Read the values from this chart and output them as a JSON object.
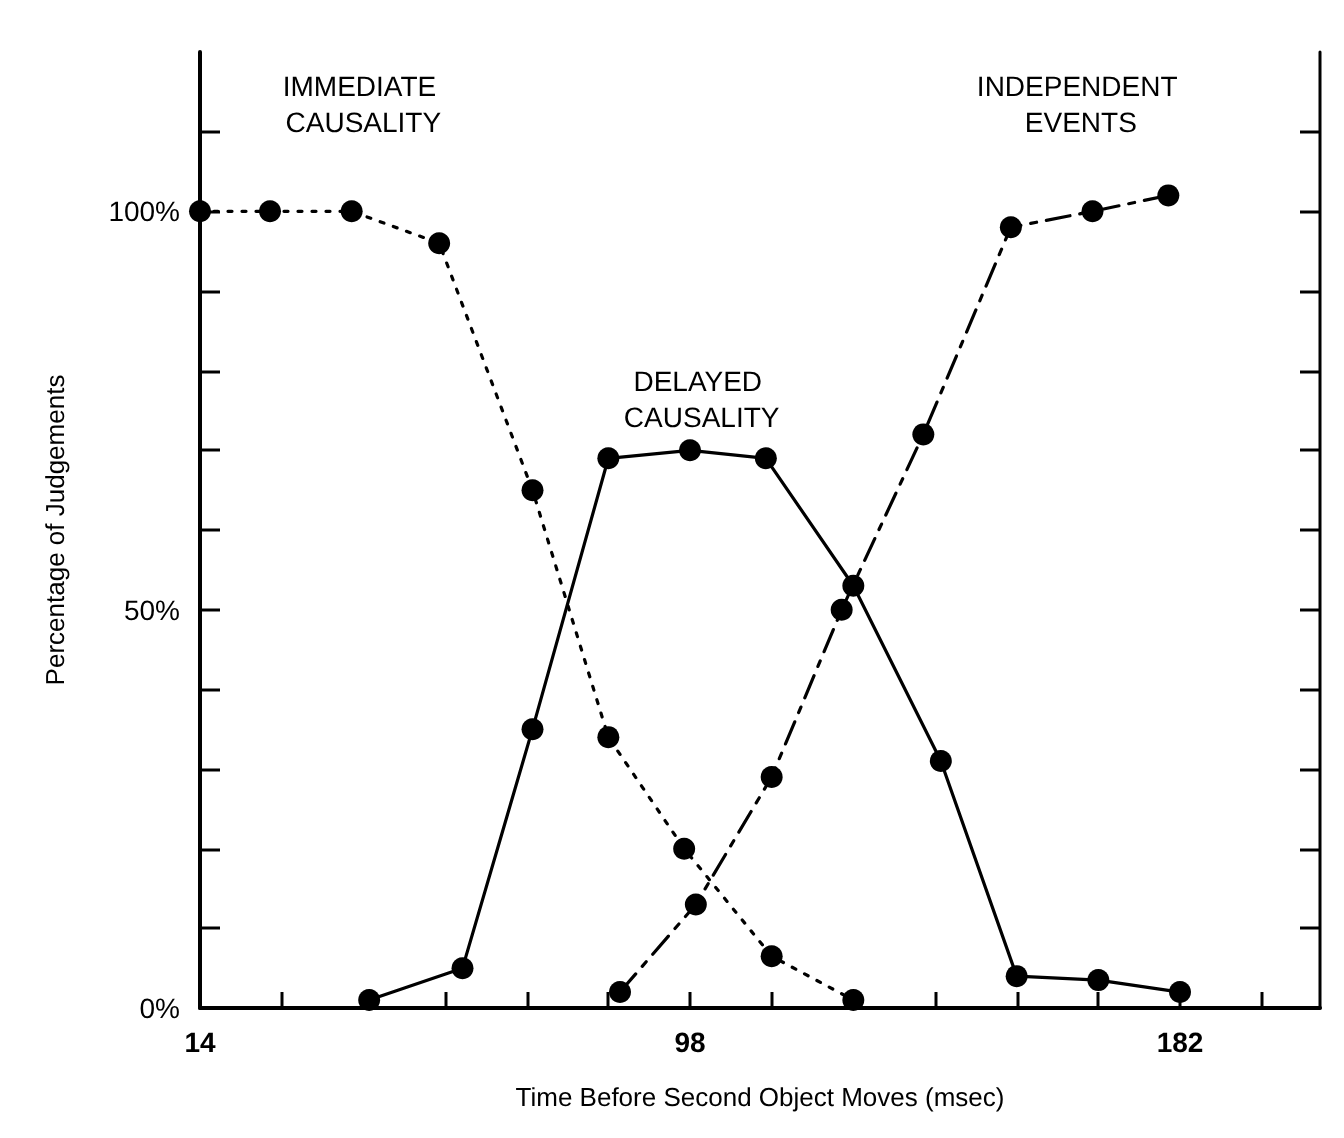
{
  "chart_data": {
    "type": "line",
    "xlabel": "Time Before Second Object Moves (msec)",
    "ylabel": "Percentage of Judgements",
    "xlim": [
      14,
      206
    ],
    "xticks": [
      14,
      {
        "value": 28,
        "label": null
      },
      {
        "value": 42,
        "label": null
      },
      {
        "value": 56,
        "label": null
      },
      {
        "value": 70,
        "label": null
      },
      {
        "value": 84,
        "label": null
      },
      98,
      {
        "value": 112,
        "label": null
      },
      {
        "value": 126,
        "label": null
      },
      {
        "value": 140,
        "label": null
      },
      {
        "value": 154,
        "label": null
      },
      {
        "value": 168,
        "label": null
      },
      182,
      {
        "value": 196,
        "label": null
      }
    ],
    "ylim": [
      0,
      120
    ],
    "yticks": [
      {
        "value": 0,
        "label": "0%"
      },
      {
        "value": 10,
        "label": null
      },
      {
        "value": 20,
        "label": null
      },
      {
        "value": 30,
        "label": null
      },
      {
        "value": 40,
        "label": null
      },
      {
        "value": 50,
        "label": "50%"
      },
      {
        "value": 60,
        "label": null
      },
      {
        "value": 70,
        "label": null
      },
      {
        "value": 80,
        "label": null
      },
      {
        "value": 90,
        "label": null
      },
      {
        "value": 100,
        "label": "100%"
      },
      {
        "value": 110,
        "label": null
      }
    ],
    "grid": false,
    "legend": false,
    "marker": "circle",
    "series": [
      {
        "name": "IMMEDIATE CAUSALITY",
        "color": "#000000",
        "line_style": "dotted",
        "x": [
          14,
          26,
          40,
          55,
          71,
          84,
          97,
          112,
          126
        ],
        "values": [
          100,
          100,
          100,
          96,
          65,
          34,
          20,
          6.5,
          1
        ]
      },
      {
        "name": "DELAYED CAUSALITY",
        "color": "#000000",
        "line_style": "solid",
        "x": [
          43,
          59,
          71,
          84,
          98,
          111,
          126,
          141,
          154,
          168,
          182
        ],
        "values": [
          1,
          5,
          35,
          69,
          70,
          69,
          53,
          31,
          4,
          3.5,
          2
        ]
      },
      {
        "name": "INDEPENDENT EVENTS",
        "color": "#000000",
        "line_style": "dashed",
        "x": [
          86,
          99,
          112,
          124,
          138,
          153,
          167,
          180
        ],
        "values": [
          2,
          13,
          29,
          50,
          72,
          98,
          100,
          102
        ]
      }
    ]
  }
}
